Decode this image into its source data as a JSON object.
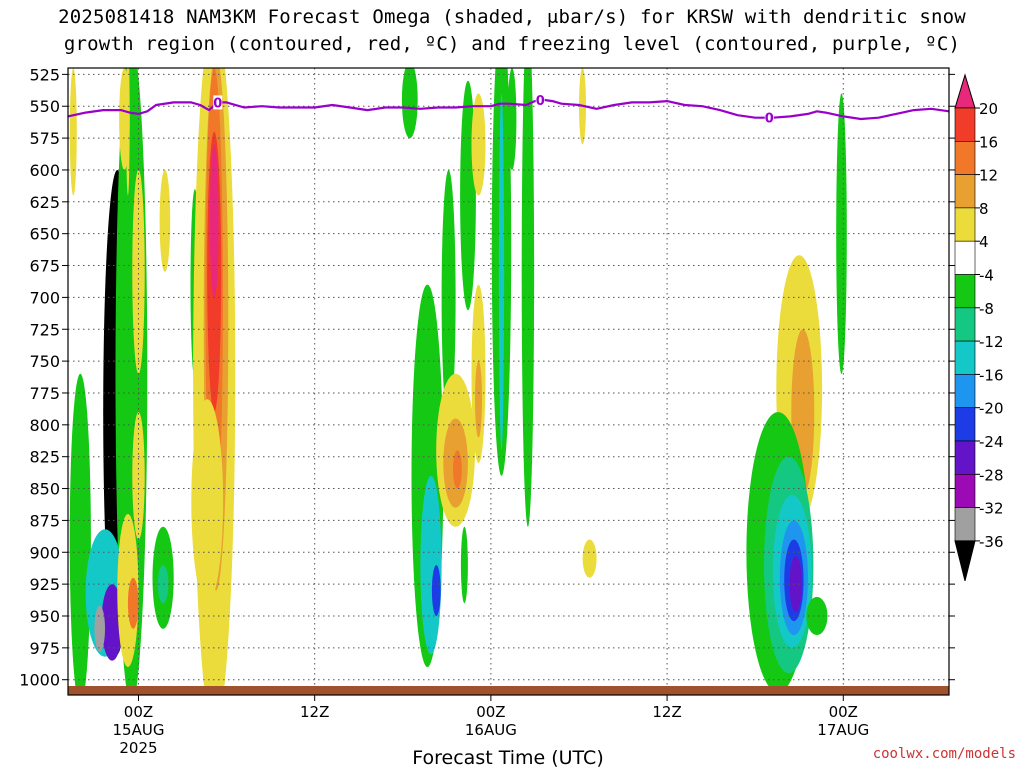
{
  "title": {
    "line1": "2025081418 NAM3KM Forecast Omega (shaded, μbar/s) for KRSW with dendritic snow",
    "line2": "growth region (contoured, red, ºC) and freezing level (contoured, purple, ºC)"
  },
  "credit": "coolwx.com/models",
  "colors": {
    "freezing_level": "#9900cc",
    "ground": "#a0522d"
  },
  "chart_data": {
    "type": "heatmap",
    "xlabel": "Forecast Time (UTC)",
    "ylabel": "",
    "x_range_hours": [
      -4,
      46
    ],
    "y_range_hpa": [
      1012,
      520
    ],
    "grid": "dotted",
    "y_ticks": [
      "525",
      "550",
      "575",
      "600",
      "625",
      "650",
      "675",
      "700",
      "725",
      "750",
      "775",
      "800",
      "825",
      "850",
      "875",
      "900",
      "925",
      "950",
      "975",
      "1000"
    ],
    "x_ticks": [
      {
        "hour": 0,
        "lines": [
          "00Z",
          "15AUG",
          "2025"
        ]
      },
      {
        "hour": 10,
        "lines": [
          "12Z"
        ]
      },
      {
        "hour": 20,
        "lines": [
          "00Z",
          "16AUG"
        ]
      },
      {
        "hour": 30,
        "lines": [
          "12Z"
        ]
      },
      {
        "hour": 40,
        "lines": [
          "00Z",
          "17AUG"
        ]
      }
    ],
    "colorbar": {
      "labels": [
        "20",
        "16",
        "12",
        "8",
        "4",
        "-4",
        "-8",
        "-12",
        "-16",
        "-20",
        "-24",
        "-28",
        "-32",
        "-36"
      ],
      "colors": [
        "#e8287a",
        "#f03c28",
        "#f07828",
        "#e8a030",
        "#ebdc3c",
        "#ffffff",
        "#14c814",
        "#14c882",
        "#14c8c8",
        "#1e96f0",
        "#1e3ce6",
        "#6414c8",
        "#9b0ab4",
        "#a0a0a0",
        "#000000"
      ]
    },
    "freezing_level_label": "0",
    "freezing_level": [
      [
        -4,
        558
      ],
      [
        -3,
        555
      ],
      [
        -2,
        553
      ],
      [
        -1,
        553
      ],
      [
        -0.5,
        555
      ],
      [
        0,
        556
      ],
      [
        0.5,
        554
      ],
      [
        1,
        549
      ],
      [
        2,
        547
      ],
      [
        3,
        547
      ],
      [
        3.5,
        549
      ],
      [
        4,
        553
      ],
      [
        4.5,
        547
      ],
      [
        5,
        547
      ],
      [
        6,
        551
      ],
      [
        7,
        550
      ],
      [
        8,
        551
      ],
      [
        9,
        551
      ],
      [
        10,
        551
      ],
      [
        11,
        549
      ],
      [
        12,
        551
      ],
      [
        13,
        553
      ],
      [
        14,
        551
      ],
      [
        15,
        551
      ],
      [
        16,
        552
      ],
      [
        17,
        551
      ],
      [
        18,
        551
      ],
      [
        19,
        550
      ],
      [
        20,
        550
      ],
      [
        20.5,
        548
      ],
      [
        21,
        548
      ],
      [
        22,
        549
      ],
      [
        22.5,
        546
      ],
      [
        23,
        545
      ],
      [
        23.5,
        546
      ],
      [
        24,
        548
      ],
      [
        25,
        549
      ],
      [
        26,
        552
      ],
      [
        27,
        549
      ],
      [
        28,
        547
      ],
      [
        29,
        547
      ],
      [
        30,
        546
      ],
      [
        31,
        549
      ],
      [
        32,
        550
      ],
      [
        33,
        553
      ],
      [
        34,
        557
      ],
      [
        35,
        559
      ],
      [
        36,
        559
      ],
      [
        37,
        558
      ],
      [
        38,
        556
      ],
      [
        38.5,
        554
      ],
      [
        39,
        555
      ],
      [
        40,
        558
      ],
      [
        41,
        560
      ],
      [
        42,
        559
      ],
      [
        43,
        556
      ],
      [
        44,
        553
      ],
      [
        45,
        552
      ],
      [
        46,
        554
      ]
    ],
    "cells": [
      {
        "x": -1.2,
        "y": 790,
        "rx": 0.8,
        "ry": 190,
        "value": -36
      },
      {
        "x": -0.4,
        "y": 760,
        "rx": 0.9,
        "ry": 260,
        "value": -6
      },
      {
        "x": -3.3,
        "y": 890,
        "rx": 0.6,
        "ry": 130,
        "value": -6
      },
      {
        "x": -1.9,
        "y": 932,
        "rx": 1.1,
        "ry": 50,
        "value": -14
      },
      {
        "x": -1.5,
        "y": 955,
        "rx": 0.6,
        "ry": 30,
        "value": -24
      },
      {
        "x": -2.2,
        "y": 960,
        "rx": 0.3,
        "ry": 18,
        "value": -32
      },
      {
        "x": -0.6,
        "y": 930,
        "rx": 0.6,
        "ry": 60,
        "value": 6
      },
      {
        "x": -0.3,
        "y": 940,
        "rx": 0.3,
        "ry": 20,
        "value": 12
      },
      {
        "x": -3.7,
        "y": 570,
        "rx": 0.2,
        "ry": 50,
        "value": 6
      },
      {
        "x": -0.8,
        "y": 560,
        "rx": 0.3,
        "ry": 40,
        "value": 6
      },
      {
        "x": -0.6,
        "y": 560,
        "rx": 0.1,
        "ry": 60,
        "value": 6
      },
      {
        "x": 0.0,
        "y": 680,
        "rx": 0.35,
        "ry": 80,
        "value": 6
      },
      {
        "x": 0.0,
        "y": 840,
        "rx": 0.35,
        "ry": 50,
        "value": 6
      },
      {
        "x": 1.5,
        "y": 640,
        "rx": 0.3,
        "ry": 40,
        "value": 6
      },
      {
        "x": 1.4,
        "y": 920,
        "rx": 0.6,
        "ry": 40,
        "value": -6
      },
      {
        "x": 1.4,
        "y": 925,
        "rx": 0.3,
        "ry": 15,
        "value": -10
      },
      {
        "x": 3.2,
        "y": 690,
        "rx": 0.25,
        "ry": 75,
        "value": -6
      },
      {
        "x": 4.3,
        "y": 760,
        "rx": 1.2,
        "ry": 280,
        "value": 6
      },
      {
        "x": 4.4,
        "y": 720,
        "rx": 0.7,
        "ry": 210,
        "value": 10
      },
      {
        "x": 4.3,
        "y": 700,
        "rx": 0.5,
        "ry": 180,
        "value": 14
      },
      {
        "x": 4.3,
        "y": 680,
        "rx": 0.4,
        "ry": 110,
        "value": 18
      },
      {
        "x": 4.3,
        "y": 640,
        "rx": 0.25,
        "ry": 60,
        "value": 22
      },
      {
        "x": 3.9,
        "y": 860,
        "rx": 0.9,
        "ry": 80,
        "value": 6
      },
      {
        "x": 15.4,
        "y": 545,
        "rx": 0.45,
        "ry": 30,
        "value": -6
      },
      {
        "x": 16.4,
        "y": 840,
        "rx": 0.9,
        "ry": 150,
        "value": -6
      },
      {
        "x": 16.6,
        "y": 910,
        "rx": 0.6,
        "ry": 70,
        "value": -14
      },
      {
        "x": 16.9,
        "y": 930,
        "rx": 0.25,
        "ry": 20,
        "value": -20
      },
      {
        "x": 17.6,
        "y": 700,
        "rx": 0.4,
        "ry": 100,
        "value": -6
      },
      {
        "x": 18.0,
        "y": 820,
        "rx": 1.1,
        "ry": 60,
        "value": 6
      },
      {
        "x": 18.0,
        "y": 830,
        "rx": 0.7,
        "ry": 35,
        "value": 10
      },
      {
        "x": 18.1,
        "y": 835,
        "rx": 0.25,
        "ry": 15,
        "value": 14
      },
      {
        "x": 18.7,
        "y": 620,
        "rx": 0.45,
        "ry": 90,
        "value": -6
      },
      {
        "x": 19.3,
        "y": 580,
        "rx": 0.4,
        "ry": 40,
        "value": 6
      },
      {
        "x": 19.3,
        "y": 760,
        "rx": 0.4,
        "ry": 70,
        "value": 6
      },
      {
        "x": 19.3,
        "y": 780,
        "rx": 0.2,
        "ry": 30,
        "value": 10
      },
      {
        "x": 18.5,
        "y": 910,
        "rx": 0.2,
        "ry": 30,
        "value": -6
      },
      {
        "x": 20.6,
        "y": 660,
        "rx": 0.55,
        "ry": 180,
        "value": -6
      },
      {
        "x": 20.6,
        "y": 680,
        "rx": 0.15,
        "ry": 140,
        "value": -14
      },
      {
        "x": 21.2,
        "y": 560,
        "rx": 0.25,
        "ry": 40,
        "value": -6
      },
      {
        "x": 22.1,
        "y": 680,
        "rx": 0.35,
        "ry": 200,
        "value": -6
      },
      {
        "x": 25.2,
        "y": 550,
        "rx": 0.2,
        "ry": 30,
        "value": 6
      },
      {
        "x": 25.6,
        "y": 905,
        "rx": 0.4,
        "ry": 15,
        "value": 6
      },
      {
        "x": 37.5,
        "y": 772,
        "rx": 1.3,
        "ry": 105,
        "value": 6
      },
      {
        "x": 37.7,
        "y": 790,
        "rx": 0.65,
        "ry": 65,
        "value": 10
      },
      {
        "x": 36.3,
        "y": 900,
        "rx": 1.8,
        "ry": 110,
        "value": -6
      },
      {
        "x": 36.9,
        "y": 910,
        "rx": 1.4,
        "ry": 85,
        "value": -10
      },
      {
        "x": 37.1,
        "y": 915,
        "rx": 1.1,
        "ry": 60,
        "value": -14
      },
      {
        "x": 37.2,
        "y": 920,
        "rx": 0.8,
        "ry": 45,
        "value": -18
      },
      {
        "x": 37.2,
        "y": 922,
        "rx": 0.55,
        "ry": 32,
        "value": -22
      },
      {
        "x": 37.3,
        "y": 925,
        "rx": 0.35,
        "ry": 22,
        "value": -26
      },
      {
        "x": 38.5,
        "y": 950,
        "rx": 0.6,
        "ry": 15,
        "value": -6
      },
      {
        "x": 39.9,
        "y": 650,
        "rx": 0.3,
        "ry": 110,
        "value": -6
      }
    ]
  }
}
